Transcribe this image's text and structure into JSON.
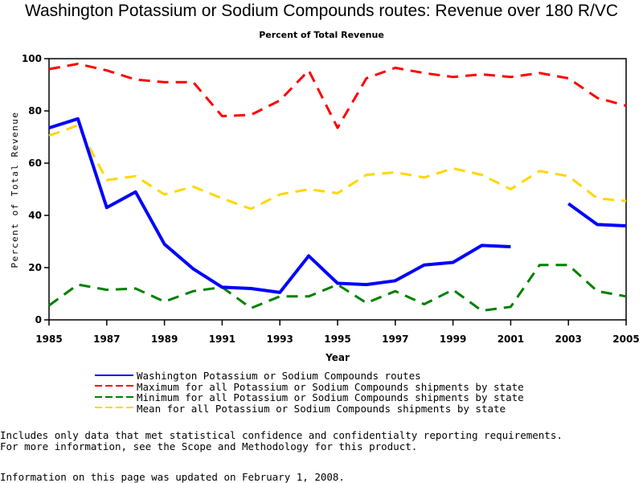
{
  "chart_data": {
    "type": "line",
    "title": "Washington Potassium or Sodium Compounds routes: Revenue over 180 R/VC",
    "subtitle": "Percent of Total Revenue",
    "xlabel": "Year",
    "ylabel": "Percent of Total Revenue",
    "x": [
      1985,
      1986,
      1987,
      1988,
      1989,
      1990,
      1991,
      1992,
      1993,
      1994,
      1995,
      1996,
      1997,
      1998,
      1999,
      2000,
      2001,
      2002,
      2003,
      2004,
      2005
    ],
    "xticks": [
      "1985",
      "1987",
      "1989",
      "1991",
      "1993",
      "1995",
      "1997",
      "1999",
      "2001",
      "2003",
      "2005"
    ],
    "xlim": [
      1985,
      2005
    ],
    "yticks": [
      "0",
      "20",
      "40",
      "60",
      "80",
      "100"
    ],
    "ylim": [
      0,
      100
    ],
    "grid": false,
    "legend_position": "bottom",
    "series": [
      {
        "name": "Washington Potassium or Sodium Compounds routes",
        "color": "#0000ff",
        "style": "solid",
        "values": [
          73.5,
          77,
          43,
          49,
          29,
          19.5,
          12.5,
          12,
          10.5,
          24.5,
          14,
          13.5,
          15,
          21,
          22,
          28.5,
          28,
          null,
          44.5,
          36.5,
          36
        ]
      },
      {
        "name": "Maximum for all Potassium or Sodium Compounds shipments by state",
        "color": "#ff0000",
        "style": "dashed",
        "values": [
          96,
          98,
          95.5,
          92,
          91,
          91,
          78,
          78.5,
          84,
          95.5,
          73.5,
          92.5,
          96.5,
          94.5,
          93,
          94,
          93,
          94.5,
          92.5,
          85,
          82
        ]
      },
      {
        "name": "Minimum for all Potassium or Sodium Compounds shipments by state",
        "color": "#008000",
        "style": "dashed",
        "values": [
          5.5,
          13.5,
          11.5,
          12,
          7,
          11,
          12.5,
          4.5,
          9,
          9,
          13.5,
          6.5,
          11,
          6,
          11.5,
          3.5,
          5,
          21,
          21,
          11,
          9
        ]
      },
      {
        "name": "Mean for all Potassium or Sodium Compounds shipments by state",
        "color": "#ffd700",
        "style": "dashed",
        "values": [
          70.5,
          74.5,
          53.5,
          55,
          48,
          51,
          46.5,
          42.5,
          48,
          50,
          48.5,
          55.5,
          56.5,
          54.5,
          58,
          55.5,
          50,
          57,
          55,
          46.5,
          45.5
        ]
      }
    ]
  },
  "notes": {
    "line1": "Includes only data that met statistical confidence and confidentialty reporting requirements.",
    "line2": "For more information, see the Scope and Methodology for this product."
  },
  "updated": "Information on this page was updated on February 1, 2008."
}
